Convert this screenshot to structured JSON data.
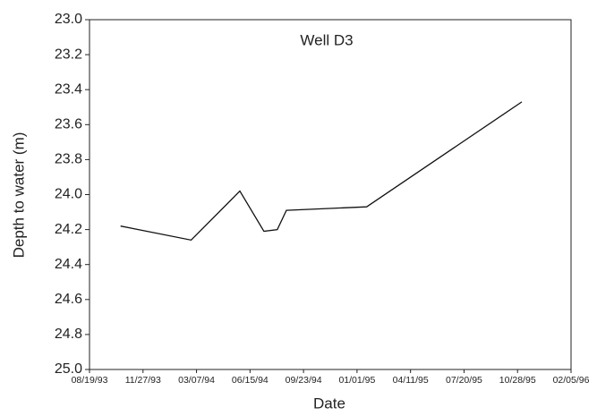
{
  "chart_data": {
    "type": "line",
    "title": "Well D3",
    "x_label": "Date",
    "y_label": "Depth to water (m)",
    "x": [
      "10/16/93",
      "02/25/94",
      "05/27/94",
      "07/11/94",
      "08/05/94",
      "08/22/94",
      "01/19/95",
      "11/05/95"
    ],
    "series": [
      {
        "name": "Well D3",
        "color": "#111111",
        "values": [
          24.18,
          24.26,
          23.98,
          24.21,
          24.2,
          24.09,
          24.07,
          23.47
        ]
      }
    ],
    "xlim": [
      "08/19/93",
      "02/05/96"
    ],
    "xticks": [
      "08/19/93",
      "11/27/93",
      "03/07/94",
      "06/15/94",
      "09/23/94",
      "01/01/95",
      "04/11/95",
      "07/20/95",
      "10/28/95",
      "02/05/96"
    ],
    "ylim": [
      23,
      25
    ],
    "y_inverted": true,
    "yticks": [
      {
        "value": 23,
        "label": "23.0"
      },
      {
        "value": 23.2,
        "label": "23.2"
      },
      {
        "value": 23.4,
        "label": "23.4"
      },
      {
        "value": 23.6,
        "label": "23.6"
      },
      {
        "value": 23.8,
        "label": "23.8"
      },
      {
        "value": 24,
        "label": "24.0"
      },
      {
        "value": 24.2,
        "label": "24.2"
      },
      {
        "value": 24.4,
        "label": "24.4"
      },
      {
        "value": 24.6,
        "label": "24.6"
      },
      {
        "value": 24.8,
        "label": "24.8"
      },
      {
        "value": 25,
        "label": "25.0"
      }
    ],
    "grid": false
  }
}
